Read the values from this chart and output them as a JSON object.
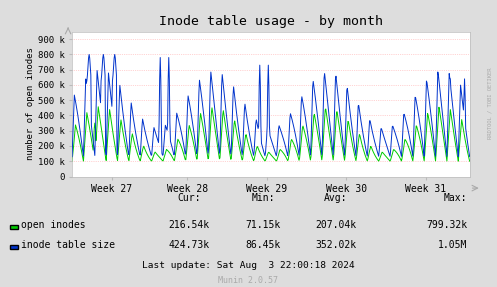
{
  "title": "Inode table usage - by month",
  "ylabel": "number of open inodes",
  "xlabel_ticks": [
    "Week 27",
    "Week 28",
    "Week 29",
    "Week 30",
    "Week 31"
  ],
  "ymax": 950000,
  "yticks": [
    0,
    100000,
    200000,
    300000,
    400000,
    500000,
    600000,
    700000,
    800000,
    900000
  ],
  "ytick_labels": [
    "0",
    "100 k",
    "200 k",
    "300 k",
    "400 k",
    "500 k",
    "600 k",
    "700 k",
    "800 k",
    "900 k"
  ],
  "plot_bg_color": "#FFFFFF",
  "grid_color": "#FFAAAA",
  "line1_color": "#00CC00",
  "line2_color": "#0033CC",
  "legend_entries": [
    "open inodes",
    "inode table size"
  ],
  "legend_colors": [
    "#00CC00",
    "#0033CC"
  ],
  "stats_headers": [
    "Cur:",
    "Min:",
    "Avg:",
    "Max:"
  ],
  "stats_cur": [
    "216.54k",
    "424.73k"
  ],
  "stats_min": [
    "71.15k",
    "86.45k"
  ],
  "stats_avg": [
    "207.04k",
    "352.02k"
  ],
  "stats_max": [
    "799.32k",
    "1.05M"
  ],
  "last_update": "Last update: Sat Aug  3 22:00:18 2024",
  "munin_version": "Munin 2.0.57",
  "rrdtool_text": "RRDTOOL / TOBI OETIKER",
  "outer_bg": "#DDDDDD",
  "title_color": "#000000"
}
